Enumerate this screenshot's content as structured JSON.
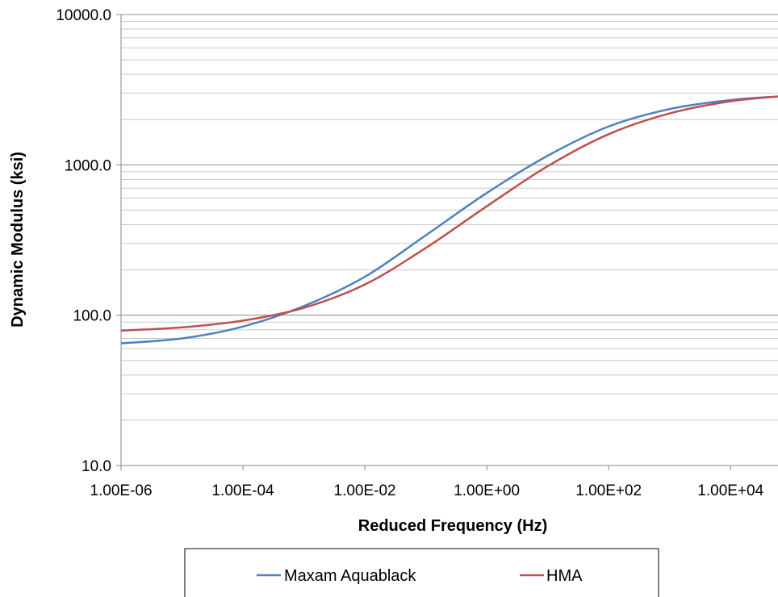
{
  "chart_data": {
    "type": "line",
    "title": "",
    "xlabel": "Reduced Frequency (Hz)",
    "ylabel": "Dynamic Modulus (ksi)",
    "xscale": "log",
    "yscale": "log",
    "xlim": [
      1e-06,
      60000
    ],
    "ylim": [
      10,
      10000
    ],
    "x_ticks": [
      {
        "value": 1e-06,
        "label": "1.00E-06"
      },
      {
        "value": 0.0001,
        "label": "1.00E-04"
      },
      {
        "value": 0.01,
        "label": "1.00E-02"
      },
      {
        "value": 1,
        "label": "1.00E+00"
      },
      {
        "value": 100,
        "label": "1.00E+02"
      },
      {
        "value": 10000,
        "label": "1.00E+04"
      }
    ],
    "y_ticks": [
      {
        "value": 10,
        "label": "10.0"
      },
      {
        "value": 100,
        "label": "100.0"
      },
      {
        "value": 1000,
        "label": "1000.0"
      },
      {
        "value": 10000,
        "label": "10000.0"
      }
    ],
    "grid": "horizontal-major-minor",
    "legend_position": "bottom",
    "series": [
      {
        "name": "Maxam Aquablack",
        "color": "#4F81BD",
        "x": [
          1e-06,
          1e-05,
          0.0001,
          0.001,
          0.01,
          0.1,
          1,
          10,
          100,
          1000,
          10000,
          60000
        ],
        "y": [
          65,
          70,
          84,
          115,
          180,
          340,
          650,
          1150,
          1800,
          2350,
          2700,
          2850
        ]
      },
      {
        "name": "HMA",
        "color": "#C0504D",
        "x": [
          1e-06,
          1e-05,
          0.0001,
          0.001,
          0.01,
          0.1,
          1,
          10,
          100,
          1000,
          10000,
          60000
        ],
        "y": [
          79,
          83,
          92,
          112,
          160,
          280,
          530,
          980,
          1600,
          2200,
          2650,
          2850
        ]
      }
    ]
  }
}
